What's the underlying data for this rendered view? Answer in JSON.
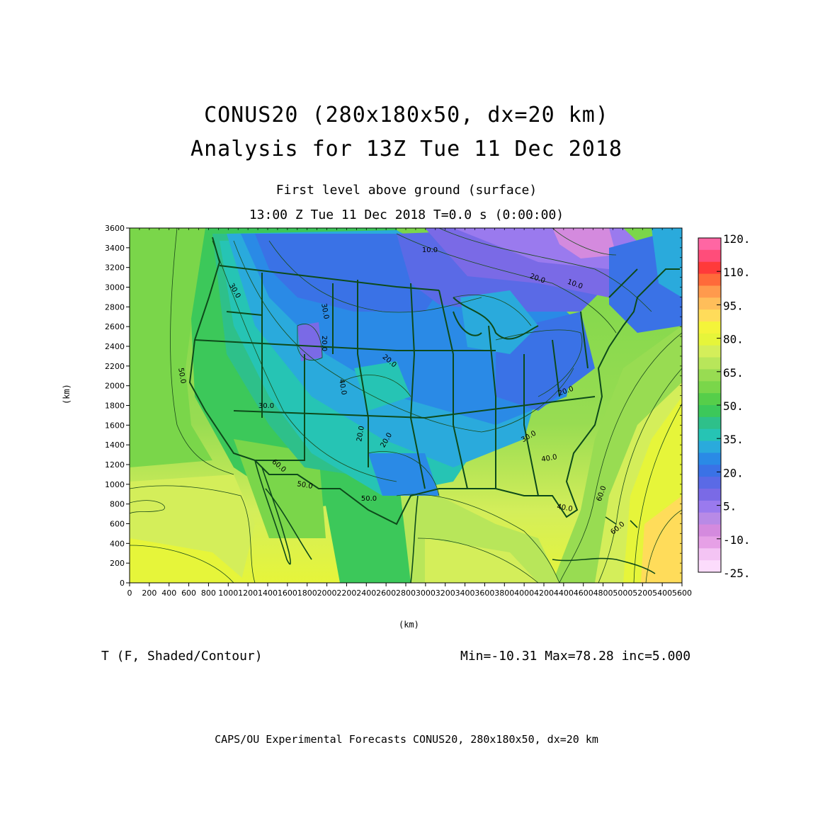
{
  "header": {
    "title_line1": "CONUS20 (280x180x50, dx=20 km)",
    "title_line2": "Analysis for 13Z Tue 11 Dec 2018",
    "subtitle_line1": "First level above ground (surface)",
    "subtitle_line2": "13:00 Z Tue 11 Dec 2018    T=0.0 s (0:00:00)"
  },
  "axes": {
    "x_unit": "(km)",
    "y_unit": "(km)",
    "x_ticks": [
      "0",
      "200",
      "400",
      "600",
      "800",
      "1000",
      "1200",
      "1400",
      "1600",
      "1800",
      "2000",
      "2200",
      "2400",
      "2600",
      "2800",
      "3000",
      "3200",
      "3400",
      "3600",
      "3800",
      "4000",
      "4200",
      "4400",
      "4600",
      "4800",
      "5000",
      "5200",
      "5400",
      "5600"
    ],
    "y_ticks": [
      "0",
      "200",
      "400",
      "600",
      "800",
      "1000",
      "1200",
      "1400",
      "1600",
      "1800",
      "2000",
      "2200",
      "2400",
      "2600",
      "2800",
      "3000",
      "3200",
      "3400",
      "3600"
    ],
    "x_range": [
      0,
      5600
    ],
    "y_range": [
      0,
      3600
    ]
  },
  "colorbar": {
    "labels": [
      "120.",
      "110.",
      "95.",
      "80.",
      "65.",
      "50.",
      "35.",
      "20.",
      "5.",
      "-10.",
      "-25."
    ],
    "colors": [
      "#ff66a3",
      "#ff4d7a",
      "#ff3a3a",
      "#ff6a3a",
      "#ff9a4d",
      "#ffbe5a",
      "#ffdc5a",
      "#f4f43a",
      "#e6f53a",
      "#d4ee5a",
      "#b8e65a",
      "#98dc52",
      "#7ad64a",
      "#56ce4a",
      "#3cc85a",
      "#2ec08a",
      "#26c4b4",
      "#2aaadc",
      "#2a8ae6",
      "#3a72e6",
      "#5a6ae6",
      "#7a6ae6",
      "#9a7aee",
      "#b88ae6",
      "#d48ade",
      "#e6a0e6",
      "#f4c4f4",
      "#fcdcfc"
    ]
  },
  "contour_labels": [
    "10.0",
    "20.0",
    "10.0",
    "30.0",
    "30.0",
    "20.0",
    "20.0",
    "50.0",
    "40.0",
    "20.0",
    "30.0",
    "20.0",
    "20.0",
    "30.0",
    "40.0",
    "60.0",
    "50.0",
    "50.0",
    "40.0",
    "60.0",
    "60.0"
  ],
  "footer": {
    "variable_label": "T (F, Shaded/Contour)",
    "stats": "Min=-10.31  Max=78.28  inc=5.000",
    "credit": "CAPS/OU Experimental Forecasts   CONUS20, 280x180x50, dx=20 km"
  }
}
